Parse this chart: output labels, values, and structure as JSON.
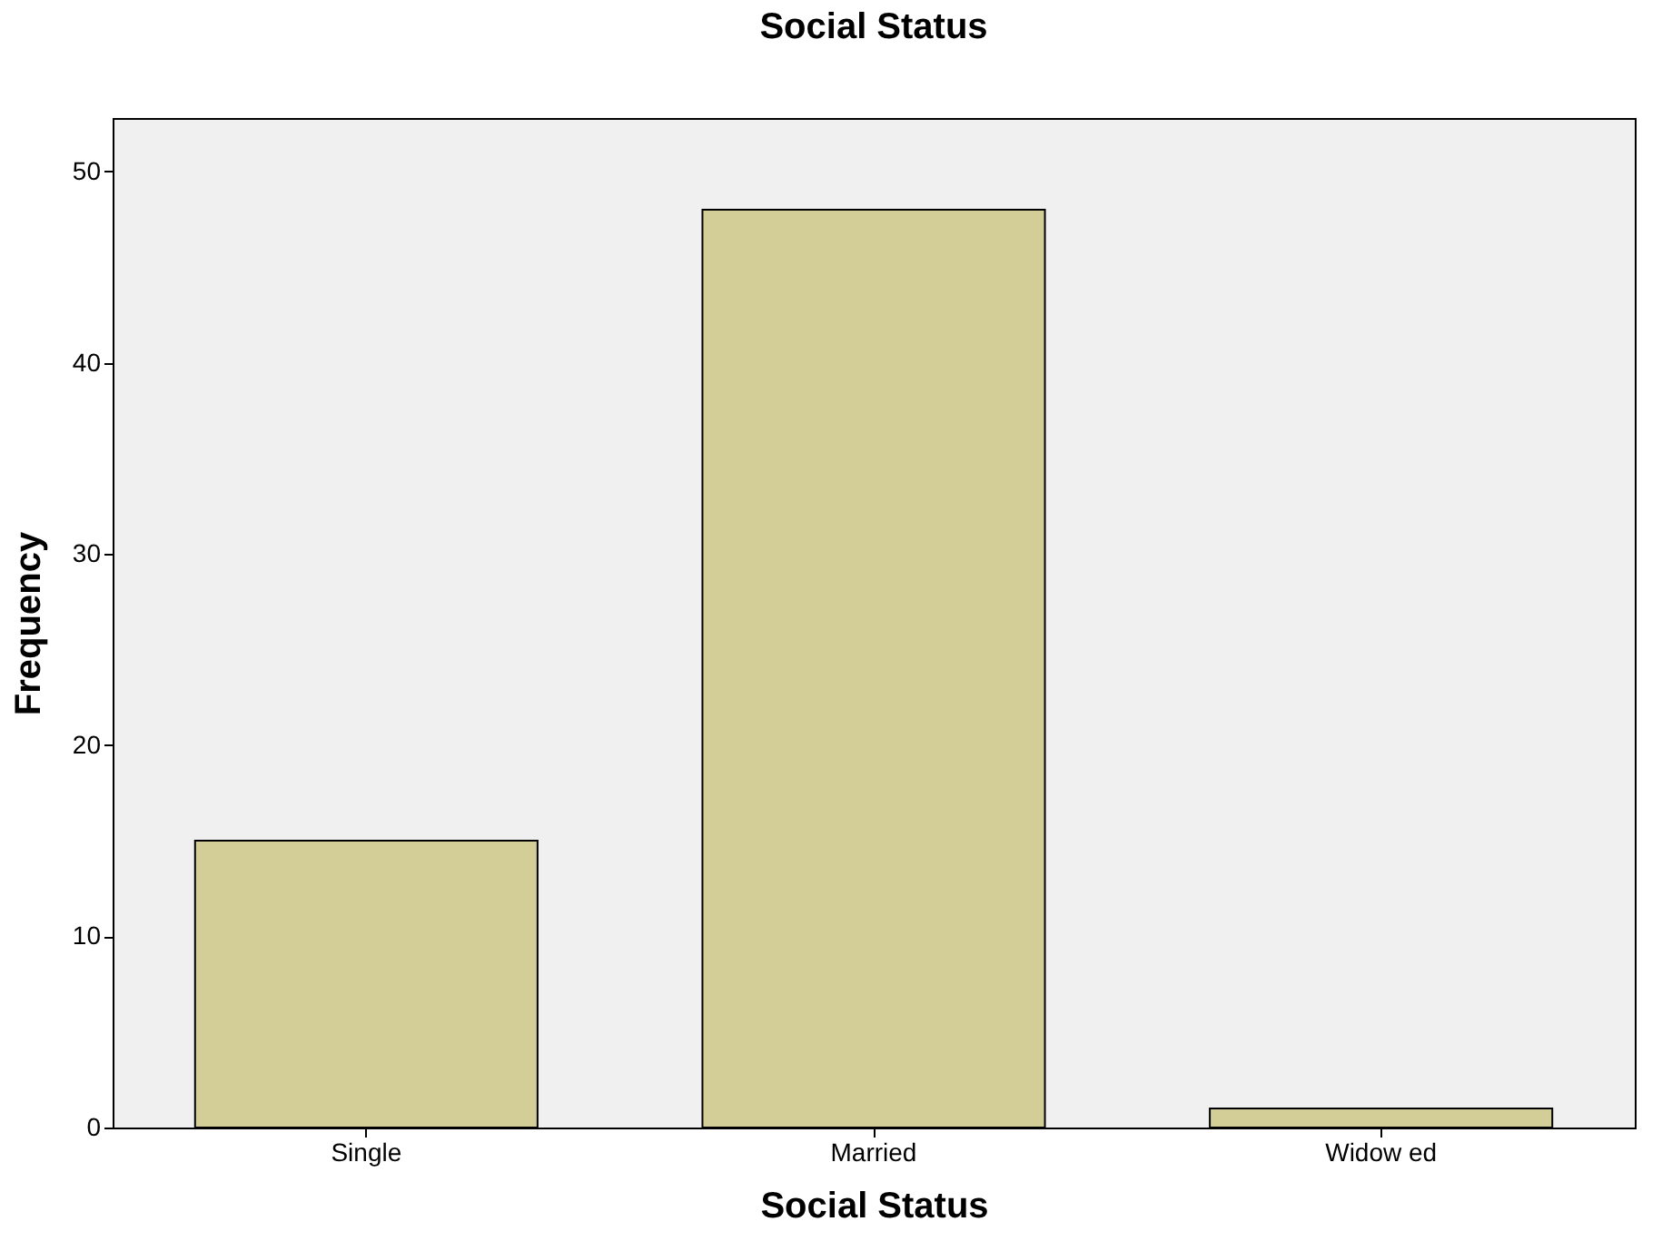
{
  "chart_data": {
    "type": "bar",
    "title": "Social Status",
    "xlabel": "Social Status",
    "ylabel": "Frequency",
    "categories": [
      "Single",
      "Married",
      "Widow ed"
    ],
    "values": [
      15,
      48,
      1
    ],
    "color": "#d3ce98",
    "ylim": [
      0,
      52.8
    ],
    "yticks": [
      0,
      10,
      20,
      30,
      40,
      50
    ],
    "grid": false
  }
}
